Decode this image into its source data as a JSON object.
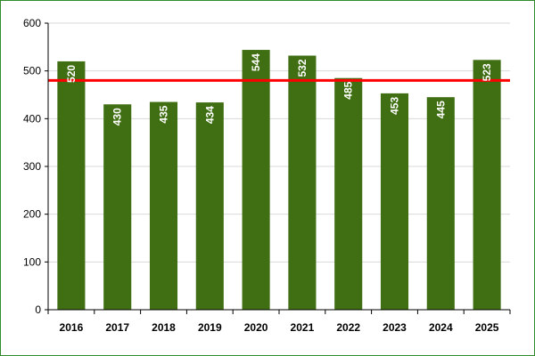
{
  "chart_data": {
    "type": "bar",
    "categories": [
      "2016",
      "2017",
      "2018",
      "2019",
      "2020",
      "2021",
      "2022",
      "2023",
      "2024",
      "2025"
    ],
    "values": [
      520,
      430,
      435,
      434,
      544,
      532,
      485,
      453,
      445,
      523
    ],
    "data_labels": [
      "520",
      "430",
      "435",
      "434",
      "544",
      "532",
      "485",
      "453",
      "445",
      "523"
    ],
    "ylim": [
      0,
      600
    ],
    "yticks": [
      "0",
      "100",
      "200",
      "300",
      "400",
      "500",
      "600"
    ],
    "reference_line": 480,
    "grid": true,
    "legend": "none",
    "colors": {
      "bar": "#3f6f12",
      "reference_line": "#ff0000",
      "grid": "#d9d9d9",
      "frame": "#2e8b2e",
      "label": "#ffffff"
    }
  }
}
